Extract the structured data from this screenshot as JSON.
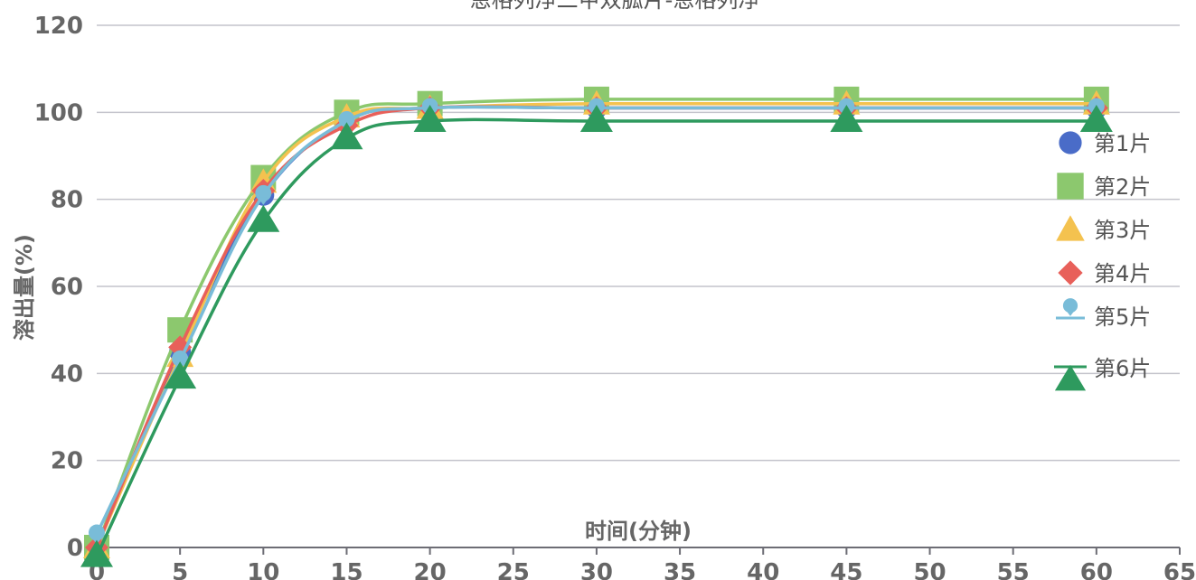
{
  "chart_data": {
    "type": "line",
    "title": "恩格列净二甲双胍片-恩格列净",
    "xlabel": "时间(分钟)",
    "ylabel": "溶出量(%)",
    "xlim": [
      0,
      65
    ],
    "ylim": [
      0,
      120
    ],
    "x_ticks": [
      "0",
      "5",
      "10",
      "15",
      "20",
      "25",
      "30",
      "35",
      "40",
      "45",
      "50",
      "55",
      "60",
      "65"
    ],
    "y_ticks": [
      "0",
      "20",
      "40",
      "60",
      "80",
      "100",
      "120"
    ],
    "grid": true,
    "legend_position": "right",
    "x": [
      0,
      5,
      10,
      15,
      20,
      30,
      45,
      60
    ],
    "series": [
      {
        "name": "第1片",
        "color": "#4a6cc8",
        "marker": "circle",
        "values": [
          0,
          45,
          81,
          98,
          101,
          101,
          101,
          101
        ]
      },
      {
        "name": "第2片",
        "color": "#8cc86e",
        "marker": "square",
        "values": [
          0,
          50,
          85,
          100,
          102,
          103,
          103,
          103
        ]
      },
      {
        "name": "第3片",
        "color": "#f4c24f",
        "marker": "triangle",
        "values": [
          0,
          44,
          84,
          99,
          101,
          102,
          102,
          102
        ]
      },
      {
        "name": "第4片",
        "color": "#e8605a",
        "marker": "diamond",
        "values": [
          0,
          46,
          82,
          97,
          101,
          101,
          101,
          101
        ]
      },
      {
        "name": "第5片",
        "color": "#79bcd8",
        "marker": "pin",
        "values": [
          3,
          43,
          81,
          98,
          101,
          101,
          101,
          101
        ]
      },
      {
        "name": "第6片",
        "color": "#2e9a5e",
        "marker": "triangle-down",
        "values": [
          -2,
          39,
          75,
          94,
          98,
          98,
          98,
          98
        ]
      }
    ]
  }
}
